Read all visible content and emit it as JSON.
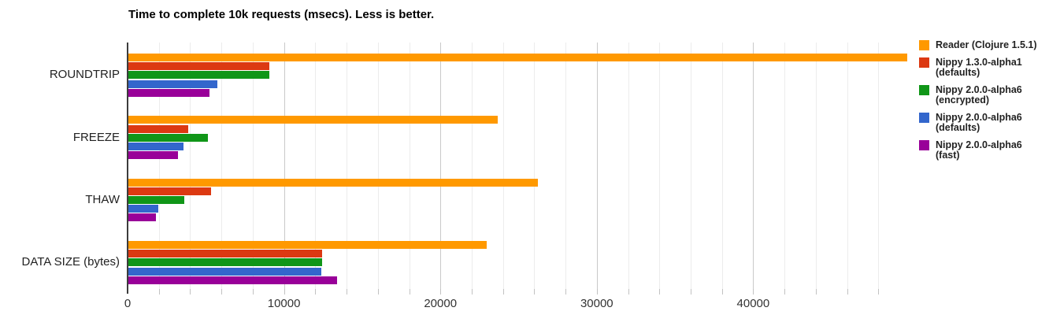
{
  "chart_data": {
    "type": "bar",
    "orientation": "horizontal",
    "title": "Time to complete 10k requests (msecs). Less is better.",
    "categories": [
      "ROUNDTRIP",
      "FREEZE",
      "THAW",
      "DATA SIZE (bytes)"
    ],
    "series": [
      {
        "name": "Reader (Clojure 1.5.1)",
        "legend_lines": [
          "Reader (Clojure 1.5.1)"
        ],
        "color": "#FF9900",
        "values": [
          49800,
          23600,
          26200,
          22900
        ]
      },
      {
        "name": "Nippy 1.3.0-alpha1 (defaults)",
        "legend_lines": [
          "Nippy 1.3.0-alpha1",
          "(defaults)"
        ],
        "color": "#DC3912",
        "values": [
          9030,
          3800,
          5270,
          12400
        ]
      },
      {
        "name": "Nippy 2.0.0-alpha6 (encrypted)",
        "legend_lines": [
          "Nippy 2.0.0-alpha6",
          "(encrypted)"
        ],
        "color": "#109618",
        "values": [
          9000,
          5100,
          3560,
          12400
        ]
      },
      {
        "name": "Nippy 2.0.0-alpha6 (defaults)",
        "legend_lines": [
          "Nippy 2.0.0-alpha6",
          "(defaults)"
        ],
        "color": "#3366CC",
        "values": [
          5690,
          3510,
          1900,
          12350
        ]
      },
      {
        "name": "Nippy 2.0.0-alpha6 (fast)",
        "legend_lines": [
          "Nippy 2.0.0-alpha6 (fast)"
        ],
        "color": "#990099",
        "values": [
          5170,
          3170,
          1780,
          13330
        ]
      }
    ],
    "xlim": [
      0,
      50000
    ],
    "x_major_ticks": [
      0,
      10000,
      20000,
      30000,
      40000
    ],
    "x_tick_labels": [
      "0",
      "10000",
      "20000",
      "30000",
      "40000"
    ],
    "minor_grid_step": 2000,
    "major_grid_step": 10000,
    "grid": true,
    "legend_position": "right",
    "background_color": "#ffffff"
  }
}
